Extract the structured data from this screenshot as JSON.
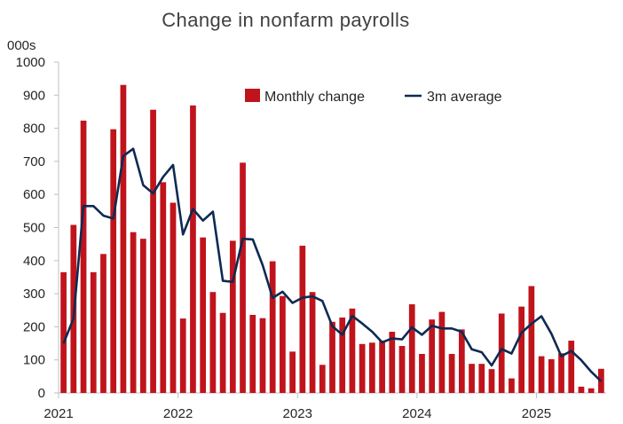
{
  "chart_data": {
    "type": "bar+line",
    "title": "Change in nonfarm payrolls",
    "unit_label": "000s",
    "ylim": [
      0,
      1000
    ],
    "y_ticks": [
      "0",
      "100",
      "200",
      "300",
      "400",
      "500",
      "600",
      "700",
      "800",
      "900",
      "1000"
    ],
    "x_ticks": [
      "2021",
      "2022",
      "2023",
      "2024",
      "2025"
    ],
    "x_start": "2021-01",
    "legend": {
      "bar_label": "Monthly change",
      "line_label": "3m average",
      "placement": "top-right"
    },
    "colors": {
      "bar": "#c0141c",
      "line": "#0d2a52"
    },
    "series": [
      {
        "name": "Monthly change",
        "kind": "bar",
        "values": [
          365,
          508,
          823,
          365,
          420,
          797,
          931,
          486,
          466,
          856,
          637,
          575,
          225,
          869,
          470,
          305,
          242,
          460,
          696,
          236,
          226,
          398,
          293,
          125,
          445,
          305,
          85,
          215,
          228,
          255,
          148,
          152,
          158,
          185,
          142,
          268,
          118,
          222,
          245,
          118,
          192,
          88,
          88,
          72,
          240,
          44,
          261,
          323,
          111,
          102,
          120,
          158,
          19,
          14,
          73
        ]
      },
      {
        "name": "3m average",
        "kind": "line",
        "values": [
          150,
          225,
          565,
          565,
          536,
          527,
          716,
          738,
          628,
          603,
          653,
          689,
          479,
          556,
          521,
          548,
          339,
          336,
          466,
          464,
          386,
          287,
          306,
          272,
          288,
          292,
          278,
          202,
          176,
          233,
          210,
          185,
          153,
          165,
          162,
          198,
          176,
          203,
          195,
          195,
          185,
          132,
          123,
          83,
          133,
          119,
          182,
          209,
          232,
          179,
          111,
          127,
          99,
          64,
          35
        ]
      }
    ]
  }
}
